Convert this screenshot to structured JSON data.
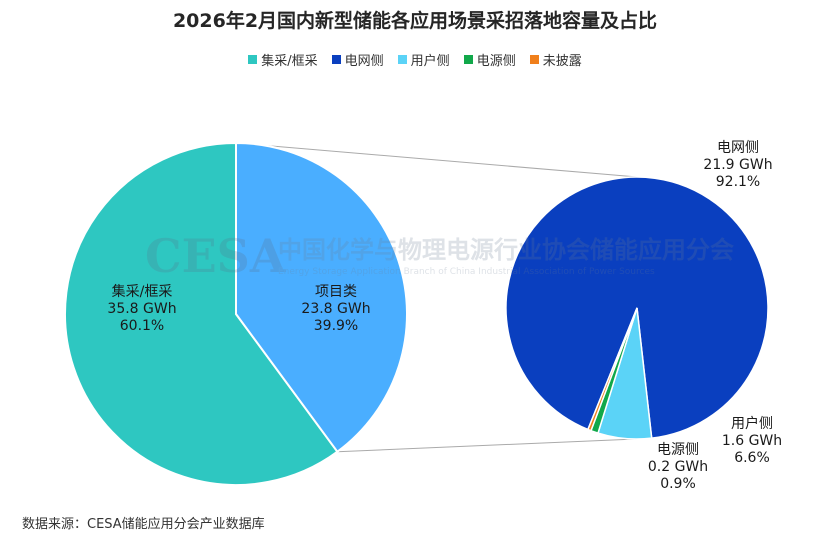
{
  "title": "2026年2月国内新型储能各应用场景采招落地容量及占比",
  "legend": [
    {
      "label": "集采/框采",
      "color": "#2EC7C1"
    },
    {
      "label": "电网侧",
      "color": "#0A3FBF"
    },
    {
      "label": "用户侧",
      "color": "#5BD3F7"
    },
    {
      "label": "电源侧",
      "color": "#11A84A"
    },
    {
      "label": "未披露",
      "color": "#F07F1B"
    }
  ],
  "watermark": {
    "logo": "CESA",
    "cn": "中国化学与物理电源行业协会储能应用分会",
    "en": "Energy Storage Application Branch of China Industrial Association of Power Sources"
  },
  "source": "数据来源：CESA储能应用分会产业数据库",
  "chart_data": [
    {
      "type": "pie",
      "series": [
        {
          "category": "集采/框采",
          "value_gwh": 35.8,
          "share_pct": 60.1,
          "label": [
            "集采/框采",
            "35.8 GWh",
            "60.1%"
          ],
          "color": "#2EC7C1"
        },
        {
          "category": "项目类",
          "value_gwh": 23.8,
          "share_pct": 39.9,
          "label": [
            "项目类",
            "23.8 GWh",
            "39.9%"
          ],
          "color": "#4AAEFF"
        }
      ]
    },
    {
      "type": "pie",
      "parent": "项目类",
      "series": [
        {
          "category": "电网侧",
          "value_gwh": 21.9,
          "share_pct": 92.1,
          "label": [
            "电网侧",
            "21.9 GWh",
            "92.1%"
          ],
          "color": "#0A3FBF"
        },
        {
          "category": "用户侧",
          "value_gwh": 1.6,
          "share_pct": 6.6,
          "label": [
            "用户侧",
            "1.6 GWh",
            "6.6%"
          ],
          "color": "#5BD3F7"
        },
        {
          "category": "电源侧",
          "value_gwh": 0.2,
          "share_pct": 0.9,
          "label": [
            "电源侧",
            "0.2 GWh",
            "0.9%"
          ],
          "color": "#11A84A"
        },
        {
          "category": "未披露",
          "value_gwh": 0.1,
          "share_pct": 0.4,
          "label": null,
          "color": "#F07F1B"
        }
      ]
    }
  ]
}
